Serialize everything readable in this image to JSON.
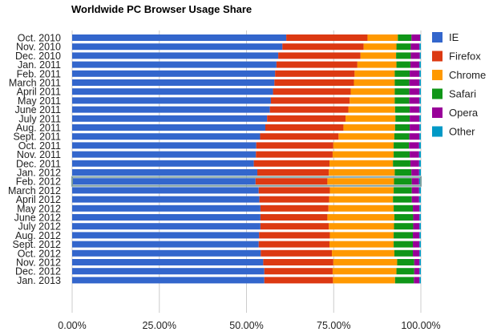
{
  "chart_data": {
    "type": "bar",
    "orientation": "horizontal",
    "stacked": "percent",
    "title": "Worldwide PC Browser Usage Share",
    "xlabel": "",
    "ylabel": "",
    "xlim": [
      0,
      100
    ],
    "x_ticks": [
      "0.00%",
      "25.00%",
      "50.00%",
      "75.00%",
      "100.00%"
    ],
    "legend_position": "right",
    "highlighted_category": "Feb. 2012",
    "categories": [
      "Oct. 2010",
      "Nov. 2010",
      "Dec. 2010",
      "Jan. 2011",
      "Feb. 2011",
      "March 2011",
      "April 2011",
      "May 2011",
      "June 2011",
      "July 2011",
      "Aug. 2011",
      "Sept. 2011",
      "Oct. 2011",
      "Nov. 2011",
      "Dec. 2011",
      "Jan. 2012",
      "Feb. 2012",
      "March 2012",
      "April 2012",
      "May 2012",
      "June 2012",
      "July 2012",
      "Aug. 2012",
      "Sept. 2012",
      "Oct. 2012",
      "Nov. 2012",
      "Dec. 2012",
      "Jan. 2013"
    ],
    "series": [
      {
        "name": "IE",
        "color": "#3366cc",
        "values": [
          61.4,
          60.3,
          59.1,
          58.6,
          58.2,
          58.0,
          57.6,
          57.0,
          56.7,
          55.9,
          55.4,
          53.9,
          52.8,
          52.7,
          52.1,
          53.1,
          52.6,
          53.5,
          53.7,
          54.0,
          54.0,
          54.0,
          53.6,
          53.5,
          54.1,
          54.8,
          55.1,
          55.1
        ]
      },
      {
        "name": "Firefox",
        "color": "#dc3912",
        "values": [
          23.3,
          23.3,
          23.6,
          23.2,
          22.8,
          22.8,
          22.3,
          22.6,
          22.5,
          22.5,
          22.4,
          22.5,
          22.1,
          22.0,
          21.7,
          20.5,
          20.6,
          20.4,
          20.0,
          19.5,
          19.2,
          19.6,
          20.3,
          20.3,
          20.4,
          20.1,
          19.6,
          19.7
        ]
      },
      {
        "name": "Chrome",
        "color": "#ff9900",
        "values": [
          8.7,
          9.4,
          10.2,
          11.2,
          11.5,
          11.7,
          12.6,
          12.9,
          13.4,
          14.3,
          14.8,
          16.0,
          17.3,
          17.5,
          18.2,
          18.9,
          19.1,
          18.3,
          18.3,
          18.7,
          19.2,
          18.7,
          18.3,
          18.4,
          17.9,
          18.3,
          18.3,
          17.8
        ]
      },
      {
        "name": "Safari",
        "color": "#109618",
        "values": [
          3.9,
          4.1,
          4.2,
          4.0,
          4.3,
          4.2,
          4.2,
          4.2,
          4.2,
          4.1,
          4.2,
          4.3,
          4.4,
          4.6,
          5.0,
          4.8,
          5.1,
          5.2,
          5.4,
          5.5,
          5.4,
          5.5,
          5.5,
          5.5,
          5.3,
          4.9,
          5.1,
          5.4
        ]
      },
      {
        "name": "Opera",
        "color": "#990099",
        "values": [
          2.5,
          2.5,
          2.6,
          2.6,
          2.8,
          2.9,
          2.9,
          2.9,
          2.8,
          2.8,
          2.8,
          2.9,
          2.9,
          2.7,
          2.5,
          2.2,
          2.1,
          2.1,
          2.1,
          1.9,
          1.8,
          1.8,
          1.9,
          1.9,
          1.9,
          1.5,
          1.5,
          1.6
        ]
      },
      {
        "name": "Other",
        "color": "#0099c6",
        "values": [
          0.2,
          0.4,
          0.3,
          0.4,
          0.4,
          0.4,
          0.4,
          0.4,
          0.4,
          0.4,
          0.4,
          0.4,
          0.5,
          0.5,
          0.5,
          0.5,
          0.5,
          0.5,
          0.5,
          0.4,
          0.4,
          0.4,
          0.4,
          0.4,
          0.4,
          0.4,
          0.4,
          0.4
        ]
      }
    ]
  }
}
